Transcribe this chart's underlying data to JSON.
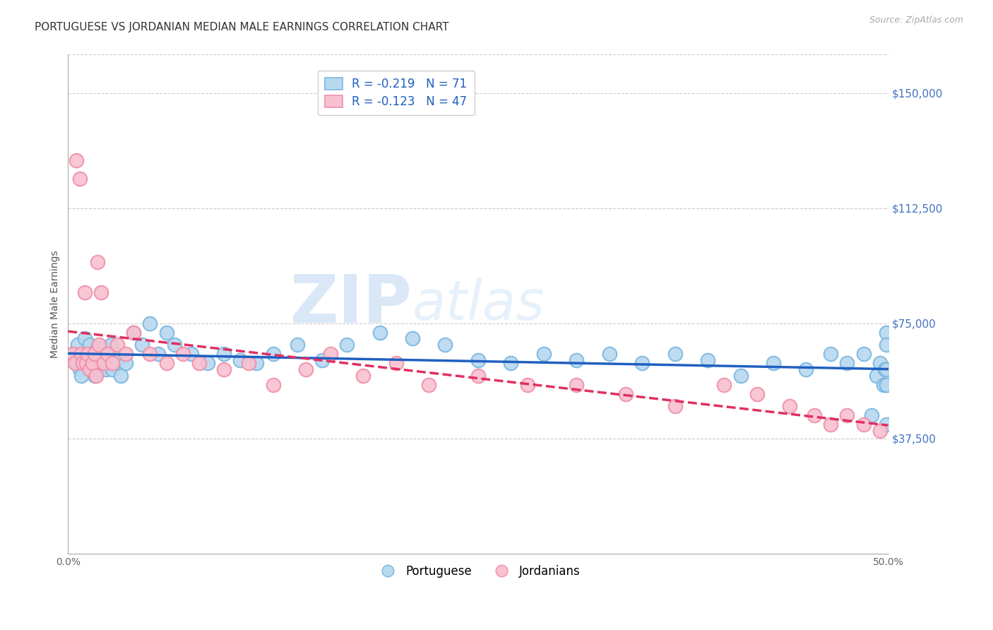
{
  "title": "PORTUGUESE VS JORDANIAN MEDIAN MALE EARNINGS CORRELATION CHART",
  "source": "Source: ZipAtlas.com",
  "ylabel": "Median Male Earnings",
  "xlim": [
    0.0,
    0.5
  ],
  "ylim": [
    0,
    162500
  ],
  "xtick_labels": [
    "0.0%",
    "",
    "",
    "",
    "",
    "50.0%"
  ],
  "xtick_values": [
    0.0,
    0.1,
    0.2,
    0.3,
    0.4,
    0.5
  ],
  "xtick_minor_values": [
    0.1,
    0.2,
    0.3,
    0.4
  ],
  "ytick_right_labels": [
    "$37,500",
    "$75,000",
    "$112,500",
    "$150,000"
  ],
  "ytick_right_values": [
    37500,
    75000,
    112500,
    150000
  ],
  "watermark_zip": "ZIP",
  "watermark_atlas": "atlas",
  "portuguese_color": "#7ab8e0",
  "portuguese_color_fill": "#b8d8f0",
  "jordanian_edge": "#f090a8",
  "jordanian_fill": "#f8c0d0",
  "trend_portuguese_color": "#2060c0",
  "trend_jordanian_color": "#e03060",
  "R_portuguese": -0.219,
  "N_portuguese": 71,
  "R_jordanian": -0.123,
  "N_jordanian": 47,
  "portuguese_x": [
    0.003,
    0.005,
    0.006,
    0.007,
    0.008,
    0.009,
    0.01,
    0.011,
    0.012,
    0.013,
    0.014,
    0.015,
    0.016,
    0.017,
    0.018,
    0.019,
    0.02,
    0.021,
    0.022,
    0.023,
    0.024,
    0.025,
    0.026,
    0.027,
    0.028,
    0.03,
    0.032,
    0.035,
    0.04,
    0.045,
    0.05,
    0.055,
    0.06,
    0.065,
    0.075,
    0.085,
    0.095,
    0.105,
    0.115,
    0.125,
    0.14,
    0.155,
    0.17,
    0.19,
    0.21,
    0.23,
    0.25,
    0.27,
    0.29,
    0.31,
    0.33,
    0.35,
    0.37,
    0.39,
    0.41,
    0.43,
    0.45,
    0.465,
    0.475,
    0.485,
    0.49,
    0.493,
    0.495,
    0.497,
    0.498,
    0.499,
    0.499,
    0.499,
    0.499,
    0.499,
    0.499
  ],
  "portuguese_y": [
    65000,
    62000,
    68000,
    60000,
    58000,
    63000,
    70000,
    65000,
    62000,
    68000,
    60000,
    65000,
    58000,
    62000,
    67000,
    60000,
    65000,
    62000,
    67000,
    60000,
    65000,
    62000,
    68000,
    60000,
    65000,
    63000,
    58000,
    62000,
    72000,
    68000,
    75000,
    65000,
    72000,
    68000,
    65000,
    62000,
    65000,
    63000,
    62000,
    65000,
    68000,
    63000,
    68000,
    72000,
    70000,
    68000,
    63000,
    62000,
    65000,
    63000,
    65000,
    62000,
    65000,
    63000,
    58000,
    62000,
    60000,
    65000,
    62000,
    65000,
    45000,
    58000,
    62000,
    55000,
    60000,
    55000,
    72000,
    60000,
    55000,
    42000,
    68000
  ],
  "jordanian_x": [
    0.003,
    0.004,
    0.005,
    0.007,
    0.008,
    0.009,
    0.01,
    0.011,
    0.012,
    0.013,
    0.015,
    0.016,
    0.017,
    0.018,
    0.019,
    0.02,
    0.022,
    0.024,
    0.027,
    0.03,
    0.035,
    0.04,
    0.05,
    0.06,
    0.07,
    0.08,
    0.095,
    0.11,
    0.125,
    0.145,
    0.16,
    0.18,
    0.2,
    0.22,
    0.25,
    0.28,
    0.31,
    0.34,
    0.37,
    0.4,
    0.42,
    0.44,
    0.455,
    0.465,
    0.475,
    0.485,
    0.495
  ],
  "jordanian_y": [
    65000,
    62000,
    128000,
    122000,
    65000,
    62000,
    85000,
    62000,
    65000,
    60000,
    62000,
    65000,
    58000,
    95000,
    68000,
    85000,
    62000,
    65000,
    62000,
    68000,
    65000,
    72000,
    65000,
    62000,
    65000,
    62000,
    60000,
    62000,
    55000,
    60000,
    65000,
    58000,
    62000,
    55000,
    58000,
    55000,
    55000,
    52000,
    48000,
    55000,
    52000,
    48000,
    45000,
    42000,
    45000,
    42000,
    40000
  ],
  "background_color": "#ffffff",
  "grid_color": "#cccccc",
  "title_fontsize": 11,
  "axis_label_fontsize": 10,
  "tick_fontsize": 10
}
